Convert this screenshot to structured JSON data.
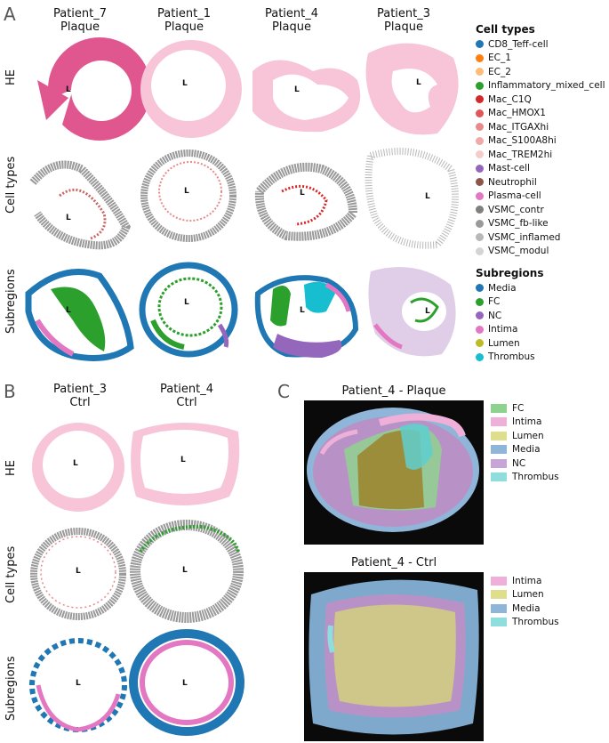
{
  "panels": {
    "A": {
      "letter": "A",
      "columns": [
        {
          "patient": "Patient_7",
          "sample": "Plaque"
        },
        {
          "patient": "Patient_1",
          "sample": "Plaque"
        },
        {
          "patient": "Patient_4",
          "sample": "Plaque"
        },
        {
          "patient": "Patient_3",
          "sample": "Plaque"
        }
      ],
      "rows": [
        "HE",
        "Cell types",
        "Subregions"
      ],
      "lumen_label": "L"
    },
    "B": {
      "letter": "B",
      "columns": [
        {
          "patient": "Patient_3",
          "sample": "Ctrl"
        },
        {
          "patient": "Patient_4",
          "sample": "Ctrl"
        }
      ],
      "rows": [
        "HE",
        "Cell types",
        "Subregions"
      ],
      "lumen_label": "L"
    },
    "C": {
      "letter": "C",
      "top_title": "Patient_4 - Plaque",
      "bottom_title": "Patient_4 - Ctrl",
      "top_legend": [
        {
          "label": "FC",
          "color": "#8fd18f"
        },
        {
          "label": "Intima",
          "color": "#eeb0d8"
        },
        {
          "label": "Lumen",
          "color": "#dede8c"
        },
        {
          "label": "Media",
          "color": "#8fb5d9"
        },
        {
          "label": "NC",
          "color": "#c7a5d6"
        },
        {
          "label": "Thrombus",
          "color": "#8fdede"
        }
      ],
      "bottom_legend": [
        {
          "label": "Intima",
          "color": "#eeb0d8"
        },
        {
          "label": "Lumen",
          "color": "#dede8c"
        },
        {
          "label": "Media",
          "color": "#8fb5d9"
        },
        {
          "label": "Thrombus",
          "color": "#8fdede"
        }
      ]
    }
  },
  "legend_cell_types": {
    "title": "Cell types",
    "items": [
      {
        "label": "CD8_Teff-cell",
        "color": "#1f77b4"
      },
      {
        "label": "EC_1",
        "color": "#ff7f0e"
      },
      {
        "label": "EC_2",
        "color": "#ffbb78"
      },
      {
        "label": "Inflammatory_mixed_cell",
        "color": "#2ca02c"
      },
      {
        "label": "Mac_C1Q",
        "color": "#d62728"
      },
      {
        "label": "Mac_HMOX1",
        "color": "#e15759"
      },
      {
        "label": "Mac_ITGAXhi",
        "color": "#e88a8a"
      },
      {
        "label": "Mac_S100A8hi",
        "color": "#f0a8a8"
      },
      {
        "label": "Mac_TREM2hi",
        "color": "#f5cccc"
      },
      {
        "label": "Mast-cell",
        "color": "#9467bd"
      },
      {
        "label": "Neutrophil",
        "color": "#8c564b"
      },
      {
        "label": "Plasma-cell",
        "color": "#e377c2"
      },
      {
        "label": "VSMC_contr",
        "color": "#7f7f7f"
      },
      {
        "label": "VSMC_fb-like",
        "color": "#9a9a9a"
      },
      {
        "label": "VSMC_inflamed",
        "color": "#b8b8b8"
      },
      {
        "label": "VSMC_modul",
        "color": "#d4d4d4"
      }
    ]
  },
  "legend_subregions": {
    "title": "Subregions",
    "items": [
      {
        "label": "Media",
        "color": "#1f77b4"
      },
      {
        "label": "FC",
        "color": "#2ca02c"
      },
      {
        "label": "NC",
        "color": "#9467bd"
      },
      {
        "label": "Intima",
        "color": "#e377c2"
      },
      {
        "label": "Lumen",
        "color": "#bcbd22"
      },
      {
        "label": "Thrombus",
        "color": "#17becf"
      }
    ]
  },
  "colors": {
    "he_pink": "#f2a7c6",
    "he_pink_light": "#f7c4d8",
    "he_dark": "#e0578f",
    "celltype_gray": "#9a9a9a",
    "media_blue": "#1f77b4",
    "fc_green": "#2ca02c",
    "nc_purple": "#9467bd",
    "intima_pink": "#e377c2",
    "thrombus_cyan": "#17becf"
  }
}
